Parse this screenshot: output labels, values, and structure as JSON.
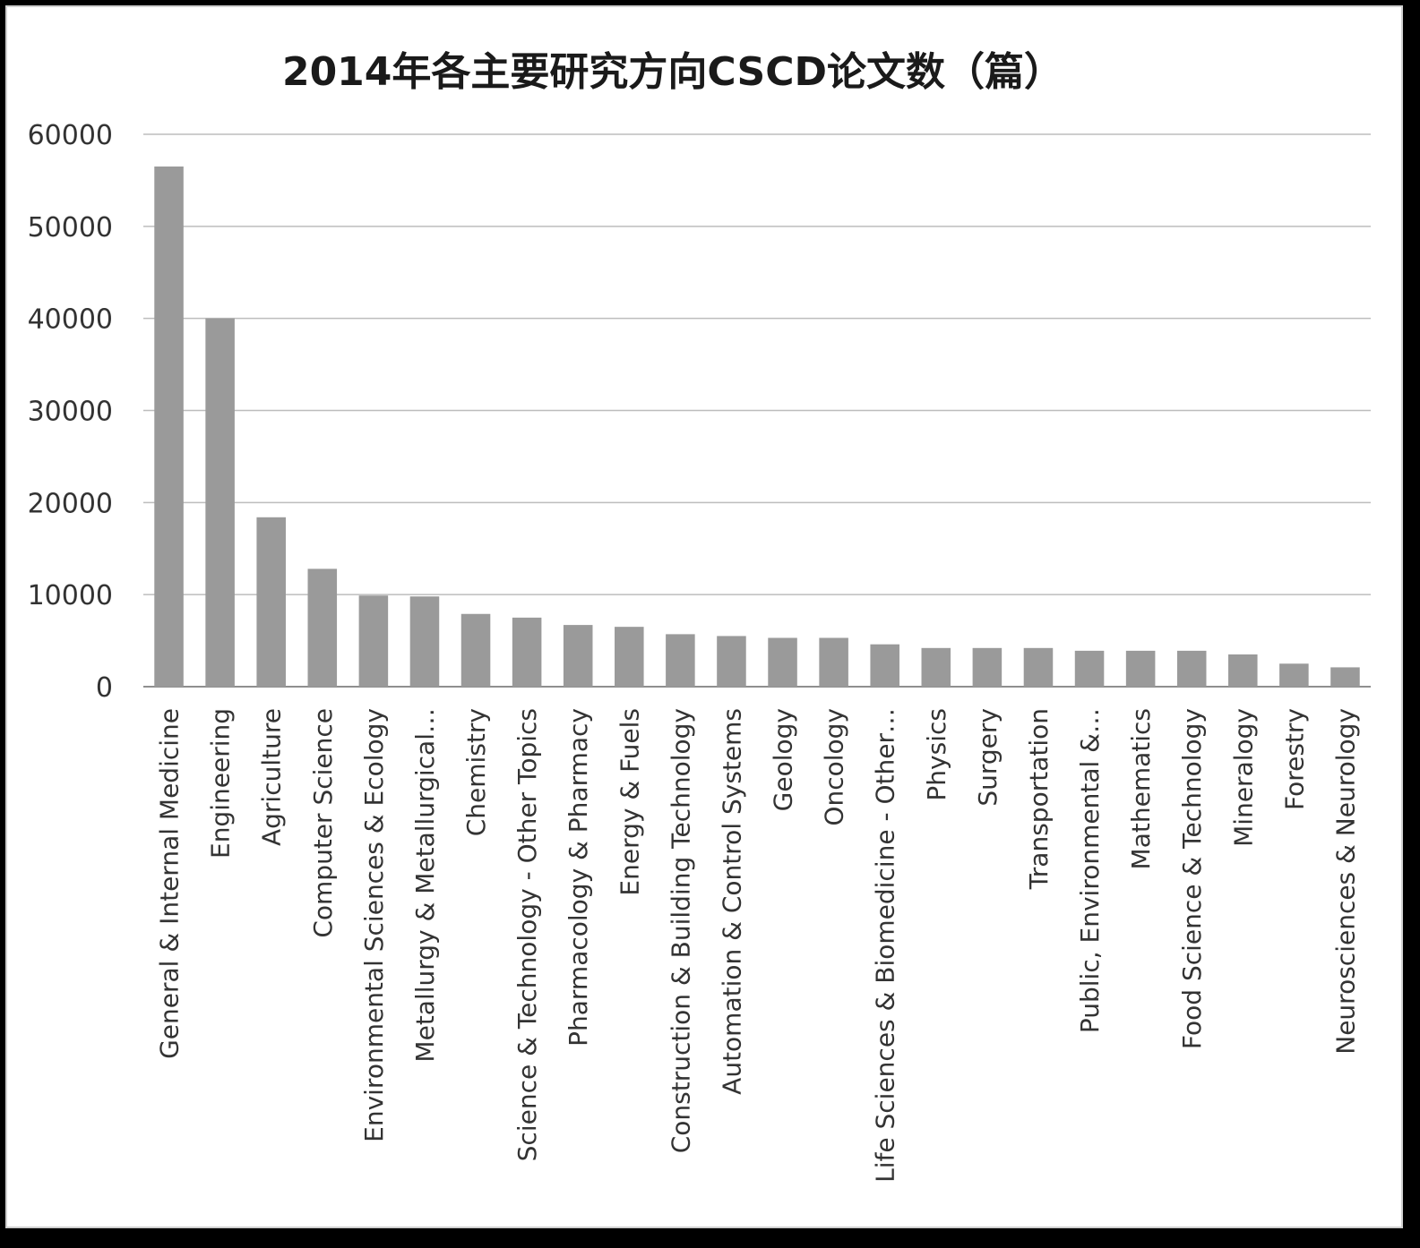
{
  "chart_data": {
    "type": "bar",
    "title": "2014年各主要研究方向CSCD论文数（篇）",
    "xlabel": "",
    "ylabel": "",
    "ylim": [
      0,
      60000
    ],
    "yticks": [
      "0",
      "10000",
      "20000",
      "30000",
      "40000",
      "50000",
      "60000"
    ],
    "grid": true,
    "legend": "none",
    "bar_color": "#9a9a9a",
    "categories": [
      "General & Internal Medicine",
      "Engineering",
      "Agriculture",
      "Computer Science",
      "Environmental Sciences & Ecology",
      "Metallurgy & Metallurgical…",
      "Chemistry",
      "Science & Technology - Other Topics",
      "Pharmacology & Pharmacy",
      "Energy & Fuels",
      "Construction & Building Technology",
      "Automation & Control Systems",
      "Geology",
      "Oncology",
      "Life Sciences & Biomedicine - Other…",
      "Physics",
      "Surgery",
      "Transportation",
      "Public, Environmental &…",
      "Mathematics",
      "Food Science & Technology",
      "Mineralogy",
      "Forestry",
      "Neurosciences & Neurology"
    ],
    "values": [
      56500,
      40000,
      18400,
      12800,
      9900,
      9800,
      7900,
      7500,
      6700,
      6500,
      5700,
      5500,
      5300,
      5300,
      4600,
      4200,
      4200,
      4200,
      3900,
      3900,
      3900,
      3500,
      2500,
      2100
    ]
  }
}
